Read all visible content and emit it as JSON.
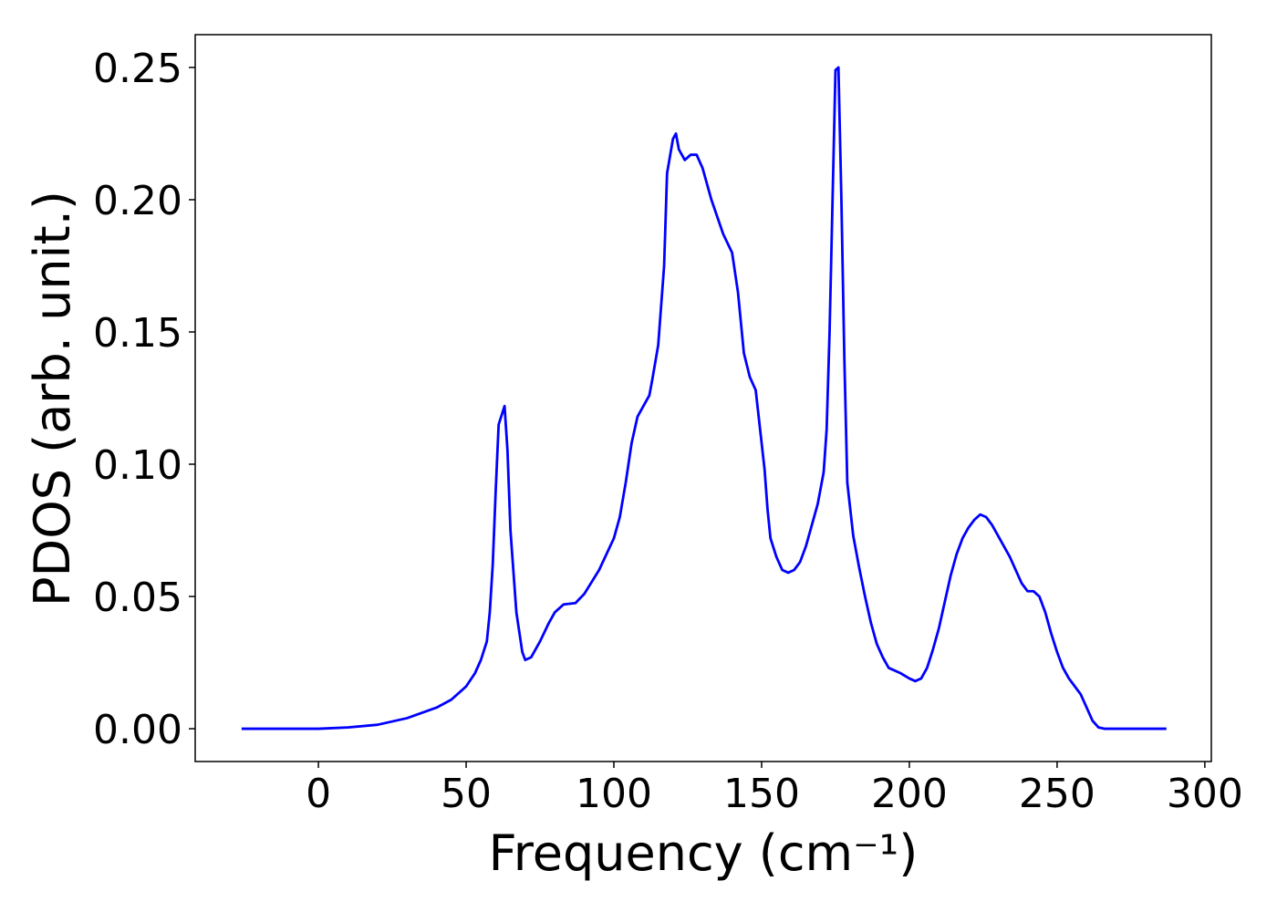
{
  "chart_data": {
    "type": "line",
    "xlabel": "Frequency (cm⁻¹)",
    "ylabel": "PDOS (arb. unit.)",
    "color": "#0000ff",
    "x": [
      -26,
      0,
      10,
      20,
      30,
      40,
      45,
      50,
      53,
      55,
      57,
      58,
      59,
      60,
      61,
      63,
      64,
      65,
      67,
      69,
      70,
      72,
      75,
      78,
      80,
      83,
      87,
      90,
      95,
      100,
      102,
      104,
      106,
      108,
      110,
      112,
      113,
      115,
      117,
      118,
      120,
      121,
      122,
      124,
      126,
      128,
      130,
      133,
      137,
      140,
      142,
      144,
      146,
      148,
      149,
      151,
      152,
      153,
      155,
      157,
      159,
      161,
      163,
      165,
      167,
      169,
      171,
      172,
      173,
      175,
      176,
      177,
      178,
      179,
      181,
      183,
      185,
      187,
      189,
      191,
      193,
      197,
      200,
      202,
      204,
      206,
      208,
      210,
      212,
      214,
      216,
      218,
      220,
      222,
      224,
      226,
      228,
      230,
      232,
      234,
      236,
      238,
      240,
      242,
      244,
      246,
      248,
      250,
      252,
      254,
      256,
      258,
      260,
      262,
      264,
      266,
      287
    ],
    "values": [
      0,
      0,
      0.0005,
      0.0015,
      0.004,
      0.008,
      0.011,
      0.016,
      0.021,
      0.026,
      0.033,
      0.044,
      0.062,
      0.09,
      0.115,
      0.122,
      0.105,
      0.075,
      0.044,
      0.029,
      0.026,
      0.027,
      0.033,
      0.04,
      0.044,
      0.047,
      0.0475,
      0.051,
      0.06,
      0.072,
      0.08,
      0.093,
      0.108,
      0.118,
      0.122,
      0.126,
      0.132,
      0.145,
      0.175,
      0.21,
      0.223,
      0.225,
      0.219,
      0.215,
      0.217,
      0.217,
      0.212,
      0.2,
      0.187,
      0.18,
      0.165,
      0.142,
      0.133,
      0.128,
      0.118,
      0.098,
      0.083,
      0.072,
      0.065,
      0.06,
      0.059,
      0.06,
      0.063,
      0.069,
      0.077,
      0.085,
      0.097,
      0.113,
      0.15,
      0.249,
      0.25,
      0.2,
      0.14,
      0.093,
      0.073,
      0.061,
      0.05,
      0.04,
      0.032,
      0.027,
      0.023,
      0.021,
      0.019,
      0.018,
      0.019,
      0.023,
      0.03,
      0.038,
      0.048,
      0.058,
      0.066,
      0.072,
      0.076,
      0.079,
      0.081,
      0.08,
      0.077,
      0.073,
      0.069,
      0.065,
      0.06,
      0.055,
      0.052,
      0.052,
      0.05,
      0.044,
      0.036,
      0.029,
      0.023,
      0.019,
      0.016,
      0.013,
      0.008,
      0.003,
      0.0005,
      0,
      0
    ],
    "xlim": [
      -41.7,
      302.2
    ],
    "ylim": [
      -0.0124,
      0.2624
    ],
    "xticks": [
      0,
      50,
      100,
      150,
      200,
      250,
      300
    ],
    "yticks": [
      {
        "value": 0,
        "label": "0.00"
      },
      0.05,
      {
        "value": 0.1,
        "label": "0.10"
      },
      0.15,
      {
        "value": 0.2,
        "label": "0.20"
      },
      0.25
    ]
  }
}
